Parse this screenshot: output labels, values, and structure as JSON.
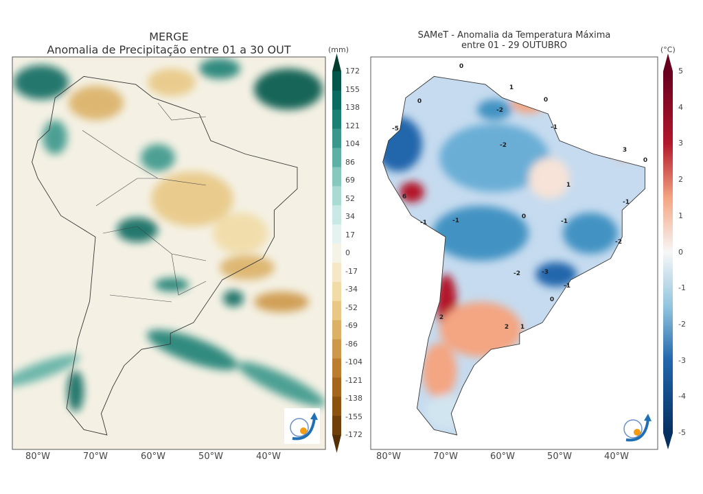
{
  "left_map": {
    "title_line1": "MERGE",
    "title_line2": "Anomalia de Precipitação entre 01 a 30 OUT",
    "colorbar_unit": "(mm)",
    "colorbar_ticks": [
      "172",
      "155",
      "138",
      "121",
      "104",
      "86",
      "69",
      "52",
      "34",
      "17",
      "0",
      "-17",
      "-34",
      "-52",
      "-69",
      "-86",
      "-104",
      "-121",
      "-138",
      "-155",
      "-172"
    ],
    "colorbar_colors": [
      "#023d30",
      "#04564a",
      "#0b6b60",
      "#1b8074",
      "#3a978b",
      "#5fb0a4",
      "#86c8bd",
      "#a9dbd2",
      "#c9e9e4",
      "#e4f3f0",
      "#f5f2e6",
      "#f6e8c6",
      "#f1dba6",
      "#e8c884",
      "#dbb166",
      "#cd984a",
      "#bb7e2e",
      "#a4661c",
      "#8b5210",
      "#70400a",
      "#553006"
    ],
    "x_ticks": [
      "80°W",
      "70°W",
      "60°W",
      "50°W",
      "40°W"
    ],
    "logo_text": "INPE"
  },
  "right_map": {
    "title_line1": "SAMeT - Anomalia da Temperatura Máxima",
    "title_line2": "entre 01 - 29 OUTUBRO",
    "colorbar_unit": "(°C)",
    "colorbar_ticks": [
      "5",
      "4",
      "3",
      "2",
      "1",
      "0",
      "-1",
      "-2",
      "-3",
      "-4",
      "-5"
    ],
    "colorbar_colors": {
      "max": "#67001f",
      "high": "#d6604d",
      "mid": "#f7f7f7",
      "low": "#4393c3",
      "min": "#053061"
    },
    "x_ticks": [
      "80°W",
      "70°W",
      "60°W",
      "50°W",
      "40°W"
    ],
    "contour_labels": [
      "-5",
      "6",
      "0",
      "-2",
      "1",
      "2",
      "0",
      "-1",
      "-2",
      "0",
      "-1",
      "3",
      "0",
      "1",
      "-1",
      "0",
      "-1",
      "-2",
      "-3",
      "-1",
      "0",
      "2",
      "1",
      "-2",
      "-1"
    ],
    "logo_text": "INPE"
  }
}
